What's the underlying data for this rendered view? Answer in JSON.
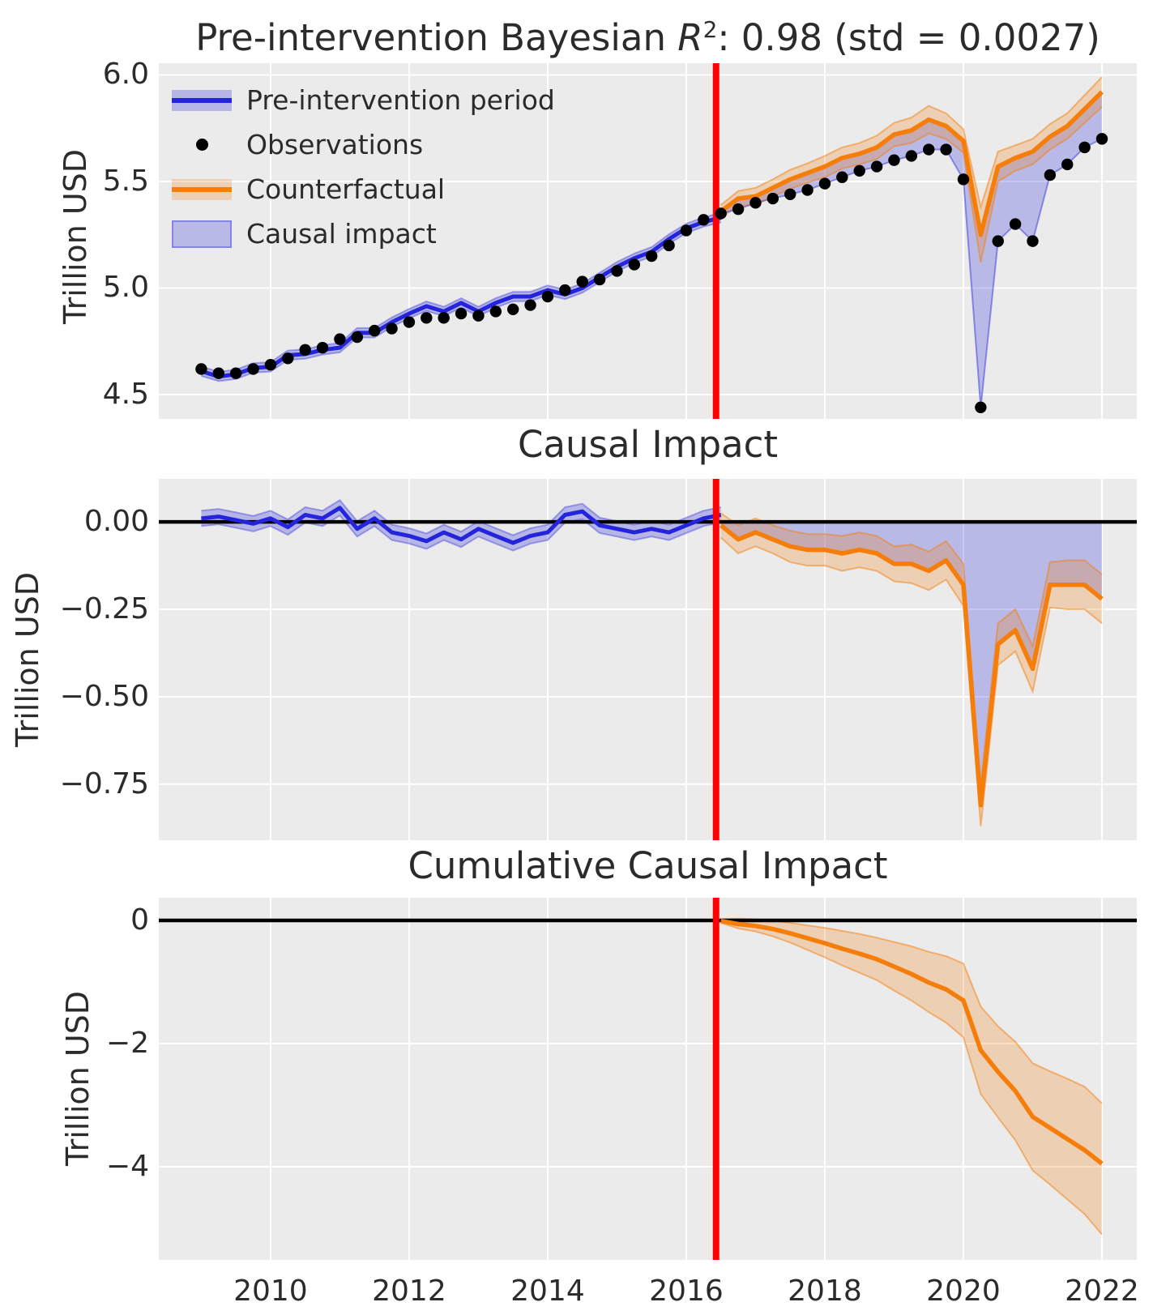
{
  "chart_data": {
    "type": "line",
    "figure_kind": "bayesian-causal-impact",
    "panels": [
      {
        "title_prefix": "Pre-intervention Bayesian ",
        "title_r": "R",
        "title_sup": "2",
        "title_suffix": ": 0.98 (std = 0.0027)",
        "ylabel": "Trillion USD",
        "ylim": [
          4.386,
          6.055
        ],
        "yticks": [
          {
            "v": 6.0,
            "label": "6.0"
          },
          {
            "v": 5.5,
            "label": "5.5"
          },
          {
            "v": 5.0,
            "label": "5.0"
          },
          {
            "v": 4.5,
            "label": "4.5"
          }
        ]
      },
      {
        "title": "Causal Impact",
        "ylabel": "Trillion USD",
        "ylim": [
          -0.91,
          0.123
        ],
        "yticks": [
          {
            "v": 0,
            "label": "0.00"
          },
          {
            "v": -0.25,
            "label": "−0.25"
          },
          {
            "v": -0.5,
            "label": "−0.50"
          },
          {
            "v": -0.75,
            "label": "−0.75"
          }
        ]
      },
      {
        "title": "Cumulative Causal Impact",
        "ylabel": "Trillion USD",
        "ylim": [
          -5.513,
          0.368
        ],
        "yticks": [
          {
            "v": 0,
            "label": "0"
          },
          {
            "v": -2,
            "label": "−2"
          },
          {
            "v": -4,
            "label": "−4"
          }
        ]
      }
    ],
    "xlim": [
      2008.387,
      2022.503
    ],
    "xticks": [
      {
        "v": 2010,
        "label": "2010"
      },
      {
        "v": 2012,
        "label": "2012"
      },
      {
        "v": 2014,
        "label": "2014"
      },
      {
        "v": 2016,
        "label": "2016"
      },
      {
        "v": 2018,
        "label": "2018"
      },
      {
        "v": 2020,
        "label": "2020"
      },
      {
        "v": 2022,
        "label": "2022"
      }
    ],
    "intervention_x": 2016.43,
    "legend": [
      "Pre-intervention period",
      "Observations",
      "Counterfactual",
      "Causal impact"
    ],
    "x_pre": [
      2009,
      2009.25,
      2009.5,
      2009.75,
      2010,
      2010.25,
      2010.5,
      2010.75,
      2011,
      2011.25,
      2011.5,
      2011.75,
      2012,
      2012.25,
      2012.5,
      2012.75,
      2013,
      2013.25,
      2013.5,
      2013.75,
      2014,
      2014.25,
      2014.5,
      2014.75,
      2015,
      2015.25,
      2015.5,
      2015.75,
      2016,
      2016.25,
      2016.5
    ],
    "x_post": [
      2016.5,
      2016.75,
      2017,
      2017.25,
      2017.5,
      2017.75,
      2018,
      2018.25,
      2018.5,
      2018.75,
      2019,
      2019.25,
      2019.5,
      2019.75,
      2020,
      2020.25,
      2020.5,
      2020.75,
      2021,
      2021.25,
      2021.5,
      2021.75,
      2022
    ],
    "observations": [
      4.62,
      4.6,
      4.6,
      4.62,
      4.64,
      4.67,
      4.71,
      4.72,
      4.76,
      4.77,
      4.8,
      4.81,
      4.84,
      4.86,
      4.86,
      4.88,
      4.87,
      4.89,
      4.9,
      4.92,
      4.96,
      4.99,
      5.03,
      5.04,
      5.08,
      5.11,
      5.15,
      5.2,
      5.27,
      5.32,
      5.35,
      5.37,
      5.4,
      5.42,
      5.44,
      5.46,
      5.49,
      5.52,
      5.55,
      5.57,
      5.6,
      5.62,
      5.65,
      5.65,
      5.51,
      4.44,
      5.22,
      5.3,
      5.22,
      5.53,
      5.58,
      5.66,
      5.7
    ],
    "pre_fit": [
      4.61,
      4.585,
      4.595,
      4.625,
      4.63,
      4.685,
      4.69,
      4.71,
      4.72,
      4.79,
      4.79,
      4.84,
      4.88,
      4.915,
      4.89,
      4.93,
      4.89,
      4.93,
      4.96,
      4.96,
      4.99,
      4.97,
      5.0,
      5.05,
      5.1,
      5.14,
      5.17,
      5.23,
      5.28,
      5.31,
      5.33
    ],
    "pre_fit_band_hw": 0.022,
    "counterfactual": [
      5.36,
      5.42,
      5.43,
      5.47,
      5.51,
      5.54,
      5.57,
      5.61,
      5.63,
      5.66,
      5.72,
      5.74,
      5.79,
      5.76,
      5.69,
      5.25,
      5.57,
      5.61,
      5.64,
      5.71,
      5.76,
      5.84,
      5.92
    ],
    "cf_band_hw": [
      0.03,
      0.035,
      0.04,
      0.04,
      0.045,
      0.045,
      0.05,
      0.05,
      0.05,
      0.055,
      0.055,
      0.06,
      0.065,
      0.06,
      0.055,
      0.13,
      0.07,
      0.06,
      0.06,
      0.06,
      0.06,
      0.065,
      0.07
    ],
    "impact_pre": [
      0.01,
      0.015,
      0.005,
      -0.005,
      0.01,
      -0.015,
      0.02,
      0.01,
      0.04,
      -0.02,
      0.01,
      -0.03,
      -0.04,
      -0.055,
      -0.03,
      -0.05,
      -0.02,
      -0.04,
      -0.06,
      -0.04,
      -0.03,
      0.02,
      0.03,
      -0.01,
      -0.02,
      -0.03,
      -0.02,
      -0.03,
      -0.01,
      0.01,
      0.02
    ],
    "impact_pre_band_hw": 0.022,
    "impact_post": [
      -0.01,
      -0.05,
      -0.03,
      -0.05,
      -0.07,
      -0.08,
      -0.08,
      -0.09,
      -0.08,
      -0.09,
      -0.12,
      -0.12,
      -0.14,
      -0.11,
      -0.18,
      -0.81,
      -0.35,
      -0.31,
      -0.42,
      -0.18,
      -0.18,
      -0.18,
      -0.22
    ],
    "impact_post_band_hw": [
      0.035,
      0.04,
      0.04,
      0.04,
      0.045,
      0.045,
      0.045,
      0.05,
      0.05,
      0.05,
      0.05,
      0.055,
      0.055,
      0.055,
      0.06,
      0.06,
      0.06,
      0.06,
      0.065,
      0.065,
      0.07,
      0.07,
      0.07
    ],
    "cumulative": [
      -0.01,
      -0.06,
      -0.09,
      -0.14,
      -0.21,
      -0.29,
      -0.37,
      -0.46,
      -0.54,
      -0.63,
      -0.75,
      -0.87,
      -1.01,
      -1.12,
      -1.3,
      -2.11,
      -2.46,
      -2.77,
      -3.19,
      -3.37,
      -3.55,
      -3.73,
      -3.95
    ],
    "cumulative_upper": [
      0.02,
      0.03,
      0.02,
      0.0,
      -0.04,
      -0.08,
      -0.12,
      -0.17,
      -0.22,
      -0.28,
      -0.35,
      -0.42,
      -0.51,
      -0.58,
      -0.7,
      -1.4,
      -1.72,
      -1.97,
      -2.32,
      -2.45,
      -2.57,
      -2.7,
      -2.97
    ],
    "cumulative_lower": [
      -0.04,
      -0.13,
      -0.18,
      -0.26,
      -0.36,
      -0.48,
      -0.6,
      -0.73,
      -0.85,
      -0.97,
      -1.14,
      -1.3,
      -1.49,
      -1.66,
      -1.9,
      -2.82,
      -3.2,
      -3.57,
      -4.06,
      -4.29,
      -4.53,
      -4.77,
      -5.1
    ],
    "colors": {
      "blue": "#2424dd",
      "orange": "#f57d0a",
      "red": "#ff0000",
      "black": "#000000",
      "observations": "#000000",
      "band_blue": "rgba(68,68,221,0.32)",
      "band_blue_edge": "rgba(68,68,221,0.45)",
      "band_orange": "rgba(245,125,10,0.25)",
      "band_orange_edge": "rgba(245,125,10,0.5)",
      "causal_fill": "rgba(68,68,221,0.30)",
      "obs_edge_line": "rgba(68,68,221,0.55)",
      "background": "#ebebeb",
      "grid": "#ffffff",
      "text": "#2b2b2b"
    }
  }
}
